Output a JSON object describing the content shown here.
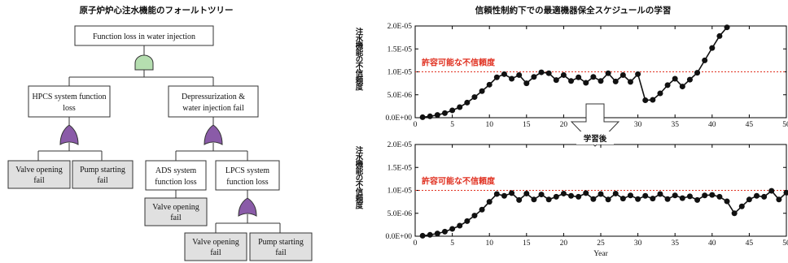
{
  "fault_tree": {
    "title": "原子炉炉心注水機能のフォールトツリー",
    "top_event": "Function loss in water injection",
    "hpcs": [
      "HPCS system function",
      "loss"
    ],
    "depress": [
      "Depressurization &",
      "water injection fail"
    ],
    "valve_fail": [
      "Valve opening",
      "fail"
    ],
    "pump_fail": [
      "Pump starting",
      "fail"
    ],
    "ads": [
      "ADS system",
      "function loss"
    ],
    "lpcs": [
      "LPCS system",
      "function loss"
    ],
    "colors": {
      "and_gate": "#b5deb0",
      "or_gate": "#8a5ba8"
    }
  },
  "chart_title": "信頼性制約下での最適機器保全スケジュールの学習",
  "arrow_label": "学習後",
  "chart_data": [
    {
      "type": "line",
      "ylabel": "注水機能の不信頼度",
      "xlabel": "",
      "threshold_label": "許容可能な不信頼度",
      "threshold": 1e-05,
      "xlim": [
        0,
        50
      ],
      "ylim": [
        0,
        2e-05
      ],
      "xticks": [
        0,
        5,
        10,
        15,
        20,
        25,
        30,
        35,
        40,
        45,
        50
      ],
      "yticks": [
        "0.0E+00",
        "5.0E-06",
        "1.0E-05",
        "1.5E-05",
        "2.0E-05"
      ],
      "x": [
        1,
        2,
        3,
        4,
        5,
        6,
        7,
        8,
        9,
        10,
        11,
        12,
        13,
        14,
        15,
        16,
        17,
        18,
        19,
        20,
        21,
        22,
        23,
        24,
        25,
        26,
        27,
        28,
        29,
        30,
        31,
        32,
        33,
        34,
        35,
        36,
        37,
        38,
        39,
        40,
        41,
        42
      ],
      "y": [
        1e-07,
        3e-07,
        6e-07,
        1e-06,
        1.6e-06,
        2.3e-06,
        3.3e-06,
        4.5e-06,
        5.8e-06,
        7.2e-06,
        8.8e-06,
        9.5e-06,
        8.5e-06,
        9.3e-06,
        7.5e-06,
        8.9e-06,
        9.9e-06,
        9.7e-06,
        8.2e-06,
        9.3e-06,
        8e-06,
        8.8e-06,
        7.6e-06,
        8.9e-06,
        8e-06,
        9.7e-06,
        7.9e-06,
        9.3e-06,
        7.8e-06,
        9.5e-06,
        3.8e-06,
        3.9e-06,
        5.3e-06,
        7.1e-06,
        8.5e-06,
        6.8e-06,
        8.3e-06,
        9.8e-06,
        1.25e-05,
        1.52e-05,
        1.78e-05,
        1.97e-05
      ]
    },
    {
      "type": "line",
      "ylabel": "注水機能の不信頼度",
      "xlabel": "Year",
      "threshold_label": "許容可能な不信頼度",
      "threshold": 1e-05,
      "xlim": [
        0,
        50
      ],
      "ylim": [
        0,
        2e-05
      ],
      "xticks": [
        0,
        5,
        10,
        15,
        20,
        25,
        30,
        35,
        40,
        45,
        50
      ],
      "yticks": [
        "0.0E+00",
        "5.0E-06",
        "1.0E-05",
        "1.5E-05",
        "2.0E-05"
      ],
      "x": [
        1,
        2,
        3,
        4,
        5,
        6,
        7,
        8,
        9,
        10,
        11,
        12,
        13,
        14,
        15,
        16,
        17,
        18,
        19,
        20,
        21,
        22,
        23,
        24,
        25,
        26,
        27,
        28,
        29,
        30,
        31,
        32,
        33,
        34,
        35,
        36,
        37,
        38,
        39,
        40,
        41,
        42,
        43,
        44,
        45,
        46,
        47,
        48,
        49,
        50
      ],
      "y": [
        1e-07,
        3e-07,
        6e-07,
        1e-06,
        1.6e-06,
        2.3e-06,
        3.3e-06,
        4.5e-06,
        5.8e-06,
        7.5e-06,
        9.2e-06,
        8.8e-06,
        9.4e-06,
        7.9e-06,
        9.3e-06,
        8e-06,
        9.1e-06,
        8e-06,
        8.6e-06,
        9.3e-06,
        8.8e-06,
        8.6e-06,
        9.4e-06,
        8.1e-06,
        9.2e-06,
        8e-06,
        9.3e-06,
        8.2e-06,
        8.9e-06,
        8.1e-06,
        8.8e-06,
        8.2e-06,
        9.2e-06,
        8.1e-06,
        8.9e-06,
        8.3e-06,
        8.7e-06,
        7.9e-06,
        8.9e-06,
        9e-06,
        8.6e-06,
        7.6e-06,
        5e-06,
        6.5e-06,
        8e-06,
        8.8e-06,
        8.6e-06,
        9.9e-06,
        8e-06,
        9.5e-06
      ]
    }
  ]
}
